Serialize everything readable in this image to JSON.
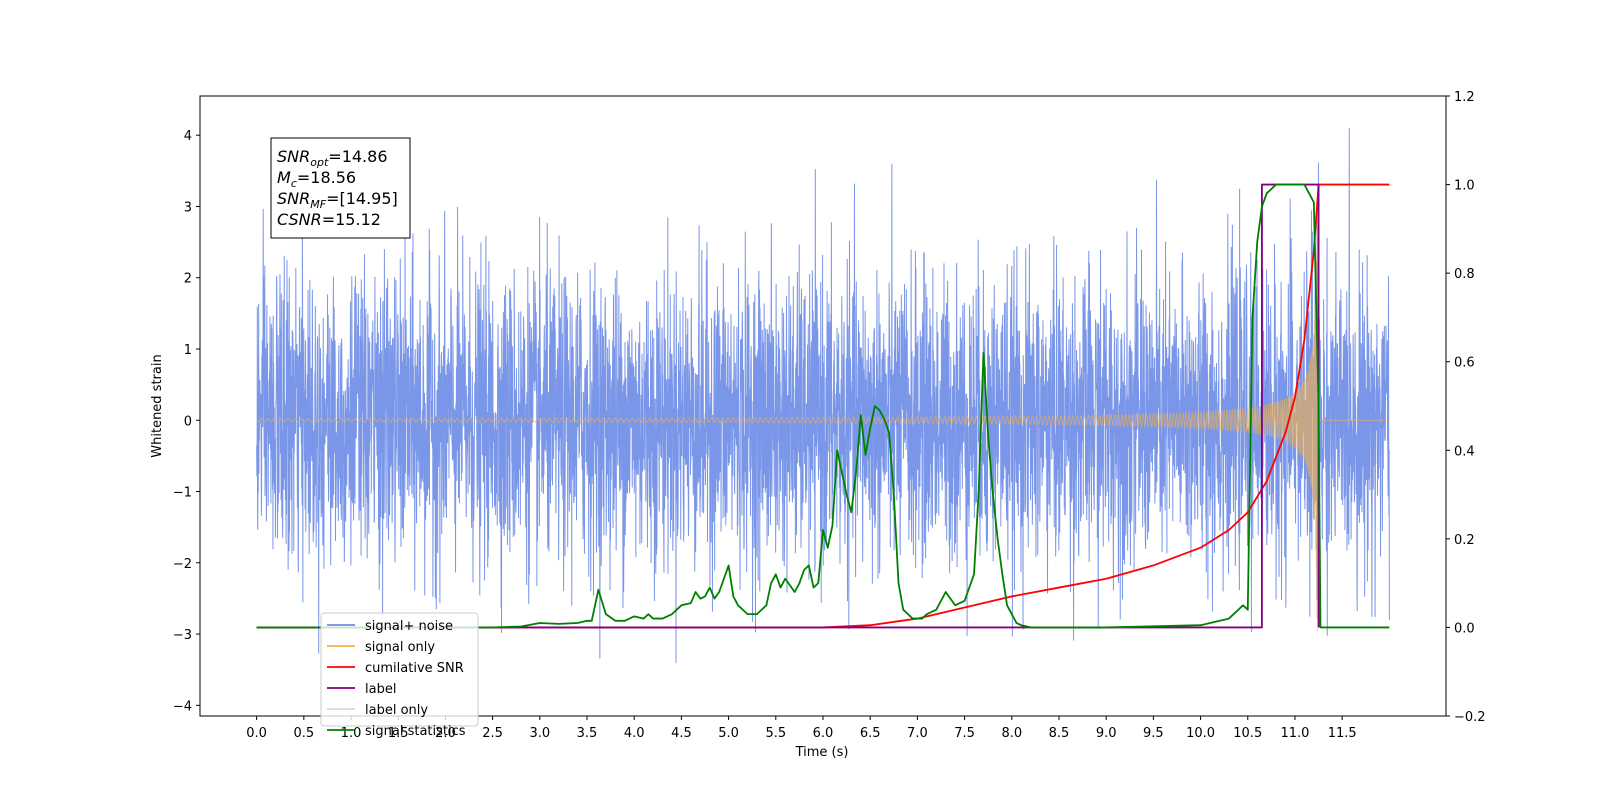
{
  "chart_data": {
    "type": "line",
    "title": "",
    "xlabel": "Time (s)",
    "ylabel": "Whitened strain",
    "y2label": "",
    "xlim": [
      -0.6,
      12.6
    ],
    "ylim": [
      -4.15,
      4.55
    ],
    "y2lim": [
      -0.2,
      1.2
    ],
    "x_ticks": [
      "0.0",
      "0.5",
      "1.0",
      "1.5",
      "2.0",
      "2.5",
      "3.0",
      "3.5",
      "4.0",
      "4.5",
      "5.0",
      "5.5",
      "6.0",
      "6.5",
      "7.0",
      "7.5",
      "8.0",
      "8.5",
      "9.0",
      "9.5",
      "10.0",
      "10.5",
      "11.0",
      "11.5"
    ],
    "y_ticks": [
      "4",
      "3",
      "2",
      "1",
      "0",
      "−1",
      "−2",
      "−3",
      "−4"
    ],
    "y2_ticks": [
      "1.2",
      "1.0",
      "0.8",
      "0.6",
      "0.4",
      "0.2",
      "0.0",
      "−0.2"
    ],
    "grid": false,
    "legend_position": "lower-left",
    "annotation": {
      "snr_opt_base": "SNR",
      "snr_opt_sub": "opt",
      "snr_opt_val": "=14.86",
      "mc_base": "M",
      "mc_sub": "c",
      "mc_val": "=18.56",
      "snr_mf_base": "SNR",
      "snr_mf_sub": "MF",
      "snr_mf_val": "=[14.95]",
      "csnr_base": "CSNR",
      "csnr_val": "=15.12"
    },
    "series": [
      {
        "name": "signal+ noise",
        "color": "#6f8de6",
        "axis": "left",
        "kind": "noise",
        "x_range": [
          0.0,
          12.0
        ],
        "std": 1.0,
        "y_range": [
          -3.8,
          4.1
        ]
      },
      {
        "name": "signal only",
        "color": "#f5b24a",
        "axis": "left",
        "kind": "chirp",
        "x_range": [
          0.0,
          12.0
        ],
        "merger_time": 11.25,
        "peak_amplitude": 3.1
      },
      {
        "name": "cumilative SNR",
        "color": "#ff0000",
        "axis": "right",
        "x": [
          0.0,
          6.0,
          6.5,
          7.0,
          7.5,
          8.0,
          8.5,
          9.0,
          9.5,
          10.0,
          10.3,
          10.5,
          10.7,
          10.9,
          11.0,
          11.1,
          11.2,
          11.25,
          12.0
        ],
        "y": [
          0.0,
          0.0,
          0.005,
          0.02,
          0.045,
          0.07,
          0.09,
          0.11,
          0.14,
          0.18,
          0.22,
          0.26,
          0.33,
          0.44,
          0.52,
          0.65,
          0.85,
          1.0,
          1.0
        ]
      },
      {
        "name": "label",
        "color": "#800080",
        "axis": "right",
        "x": [
          0.0,
          10.65,
          10.65,
          11.25,
          11.25
        ],
        "y": [
          0.0,
          0.0,
          1.0,
          1.0,
          0.0
        ]
      },
      {
        "name": "label only",
        "color": "#d8d8d8",
        "axis": "right",
        "x": [],
        "y": []
      },
      {
        "name": "signal statistics",
        "color": "#008000",
        "axis": "right",
        "x": [
          0.0,
          1.0,
          2.0,
          2.5,
          2.8,
          3.0,
          3.2,
          3.4,
          3.5,
          3.55,
          3.62,
          3.7,
          3.8,
          3.9,
          4.0,
          4.1,
          4.15,
          4.2,
          4.3,
          4.4,
          4.5,
          4.6,
          4.65,
          4.7,
          4.75,
          4.8,
          4.85,
          4.9,
          5.0,
          5.05,
          5.1,
          5.2,
          5.3,
          5.4,
          5.45,
          5.5,
          5.55,
          5.6,
          5.7,
          5.75,
          5.8,
          5.85,
          5.9,
          5.95,
          6.0,
          6.05,
          6.1,
          6.15,
          6.2,
          6.25,
          6.3,
          6.35,
          6.4,
          6.45,
          6.5,
          6.55,
          6.6,
          6.65,
          6.7,
          6.75,
          6.8,
          6.85,
          6.9,
          6.95,
          7.0,
          7.05,
          7.1,
          7.2,
          7.3,
          7.4,
          7.5,
          7.55,
          7.6,
          7.65,
          7.7,
          7.75,
          7.8,
          7.85,
          7.9,
          7.95,
          8.0,
          8.05,
          8.1,
          8.2,
          8.3,
          8.4,
          9.0,
          10.0,
          10.3,
          10.45,
          10.5,
          10.55,
          10.6,
          10.65,
          10.7,
          10.8,
          10.9,
          11.0,
          11.1,
          11.2,
          11.25,
          11.27,
          11.3,
          12.0
        ],
        "y": [
          0.0,
          0.0,
          0.0,
          0.0,
          0.002,
          0.01,
          0.008,
          0.01,
          0.015,
          0.015,
          0.085,
          0.03,
          0.015,
          0.015,
          0.025,
          0.02,
          0.03,
          0.02,
          0.02,
          0.03,
          0.05,
          0.055,
          0.08,
          0.065,
          0.07,
          0.09,
          0.065,
          0.08,
          0.14,
          0.07,
          0.05,
          0.03,
          0.03,
          0.05,
          0.1,
          0.12,
          0.09,
          0.11,
          0.08,
          0.1,
          0.13,
          0.14,
          0.09,
          0.1,
          0.22,
          0.18,
          0.23,
          0.4,
          0.35,
          0.3,
          0.26,
          0.35,
          0.48,
          0.39,
          0.45,
          0.5,
          0.49,
          0.47,
          0.44,
          0.3,
          0.1,
          0.04,
          0.03,
          0.02,
          0.02,
          0.02,
          0.03,
          0.04,
          0.08,
          0.05,
          0.06,
          0.09,
          0.12,
          0.31,
          0.62,
          0.43,
          0.3,
          0.2,
          0.12,
          0.05,
          0.03,
          0.01,
          0.005,
          0.0,
          0.0,
          0.0,
          0.0,
          0.005,
          0.02,
          0.05,
          0.04,
          0.7,
          0.87,
          0.95,
          0.98,
          1.0,
          1.0,
          1.0,
          1.0,
          0.96,
          0.5,
          0.0,
          0.0,
          0.0
        ]
      }
    ]
  }
}
